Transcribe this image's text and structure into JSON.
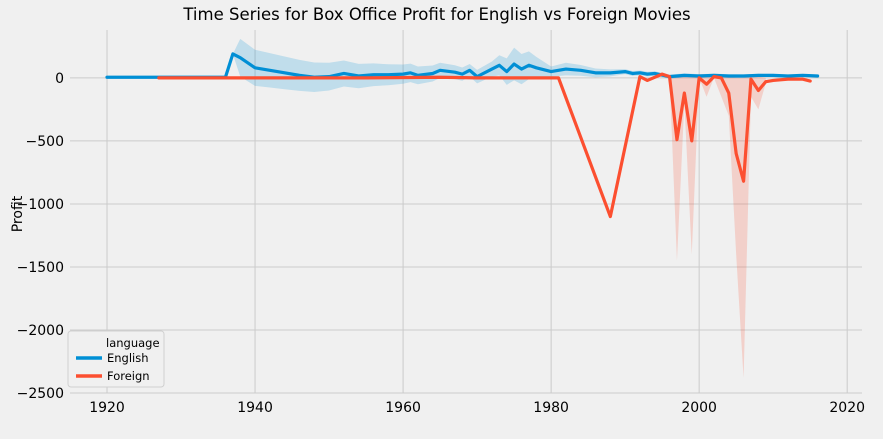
{
  "chart_data": {
    "type": "line",
    "title": "Time Series for Box Office Profit for English vs Foreign Movies",
    "xlabel": "",
    "ylabel": "Profit",
    "xlim": [
      1915,
      2022
    ],
    "ylim": [
      -2500,
      380
    ],
    "xticks": [
      1920,
      1940,
      1960,
      1980,
      2000,
      2020
    ],
    "yticks": [
      0,
      -500,
      -1000,
      -1500,
      -2000,
      -2500
    ],
    "grid": true,
    "legend": {
      "title": "language",
      "placement": "lower-left"
    },
    "series": [
      {
        "name": "English",
        "color": "#008fd5",
        "points": [
          [
            1920,
            5
          ],
          [
            1925,
            5
          ],
          [
            1930,
            5
          ],
          [
            1933,
            5
          ],
          [
            1936,
            5
          ],
          [
            1937,
            190
          ],
          [
            1938,
            160
          ],
          [
            1940,
            80
          ],
          [
            1942,
            60
          ],
          [
            1944,
            40
          ],
          [
            1946,
            20
          ],
          [
            1948,
            5
          ],
          [
            1950,
            10
          ],
          [
            1952,
            35
          ],
          [
            1954,
            15
          ],
          [
            1956,
            25
          ],
          [
            1958,
            25
          ],
          [
            1960,
            30
          ],
          [
            1961,
            40
          ],
          [
            1962,
            20
          ],
          [
            1964,
            35
          ],
          [
            1965,
            60
          ],
          [
            1967,
            45
          ],
          [
            1968,
            30
          ],
          [
            1969,
            60
          ],
          [
            1970,
            10
          ],
          [
            1972,
            70
          ],
          [
            1973,
            100
          ],
          [
            1974,
            50
          ],
          [
            1975,
            110
          ],
          [
            1976,
            70
          ],
          [
            1977,
            100
          ],
          [
            1978,
            80
          ],
          [
            1980,
            50
          ],
          [
            1982,
            70
          ],
          [
            1984,
            60
          ],
          [
            1986,
            40
          ],
          [
            1988,
            40
          ],
          [
            1990,
            50
          ],
          [
            1991,
            35
          ],
          [
            1992,
            40
          ],
          [
            1993,
            30
          ],
          [
            1994,
            35
          ],
          [
            1996,
            10
          ],
          [
            1998,
            20
          ],
          [
            2000,
            15
          ],
          [
            2002,
            20
          ],
          [
            2004,
            15
          ],
          [
            2006,
            15
          ],
          [
            2008,
            20
          ],
          [
            2010,
            20
          ],
          [
            2012,
            15
          ],
          [
            2014,
            20
          ],
          [
            2016,
            15
          ]
        ],
        "band_width": [
          [
            1937,
            0
          ],
          [
            1938,
            150
          ],
          [
            1965,
            60
          ],
          [
            1969,
            50
          ],
          [
            1972,
            60
          ],
          [
            1973,
            80
          ],
          [
            1975,
            130
          ],
          [
            1977,
            110
          ],
          [
            1980,
            40
          ],
          [
            1982,
            50
          ],
          [
            1990,
            20
          ],
          [
            2000,
            15
          ],
          [
            2016,
            10
          ]
        ]
      },
      {
        "name": "Foreign",
        "color": "#fc4f30",
        "points": [
          [
            1927,
            0
          ],
          [
            1935,
            0
          ],
          [
            1945,
            0
          ],
          [
            1955,
            0
          ],
          [
            1965,
            5
          ],
          [
            1970,
            0
          ],
          [
            1975,
            0
          ],
          [
            1981,
            0
          ],
          [
            1988,
            -1100
          ],
          [
            1992,
            10
          ],
          [
            1993,
            -20
          ],
          [
            1995,
            30
          ],
          [
            1996,
            10
          ],
          [
            1997,
            -490
          ],
          [
            1998,
            -120
          ],
          [
            1999,
            -500
          ],
          [
            2000,
            0
          ],
          [
            2001,
            -50
          ],
          [
            2002,
            10
          ],
          [
            2003,
            0
          ],
          [
            2004,
            -120
          ],
          [
            2005,
            -600
          ],
          [
            2006,
            -820
          ],
          [
            2007,
            -10
          ],
          [
            2008,
            -100
          ],
          [
            2009,
            -30
          ],
          [
            2010,
            -20
          ],
          [
            2012,
            -10
          ],
          [
            2014,
            -10
          ],
          [
            2015,
            -25
          ]
        ],
        "band_low": [
          [
            1996,
            5
          ],
          [
            1997,
            -1450
          ],
          [
            1998,
            -200
          ],
          [
            1999,
            -1400
          ],
          [
            2000,
            0
          ],
          [
            2001,
            -150
          ],
          [
            2002,
            0
          ],
          [
            2004,
            -300
          ],
          [
            2005,
            -1400
          ],
          [
            2006,
            -2380
          ],
          [
            2007,
            -150
          ],
          [
            2008,
            -250
          ],
          [
            2009,
            -40
          ]
        ],
        "band_high": [
          [
            1996,
            20
          ],
          [
            1997,
            0
          ],
          [
            1998,
            30
          ],
          [
            1999,
            10
          ],
          [
            2000,
            30
          ],
          [
            2001,
            30
          ],
          [
            2002,
            20
          ],
          [
            2004,
            10
          ],
          [
            2005,
            0
          ],
          [
            2006,
            0
          ],
          [
            2007,
            20
          ],
          [
            2008,
            10
          ],
          [
            2009,
            0
          ]
        ]
      }
    ]
  }
}
